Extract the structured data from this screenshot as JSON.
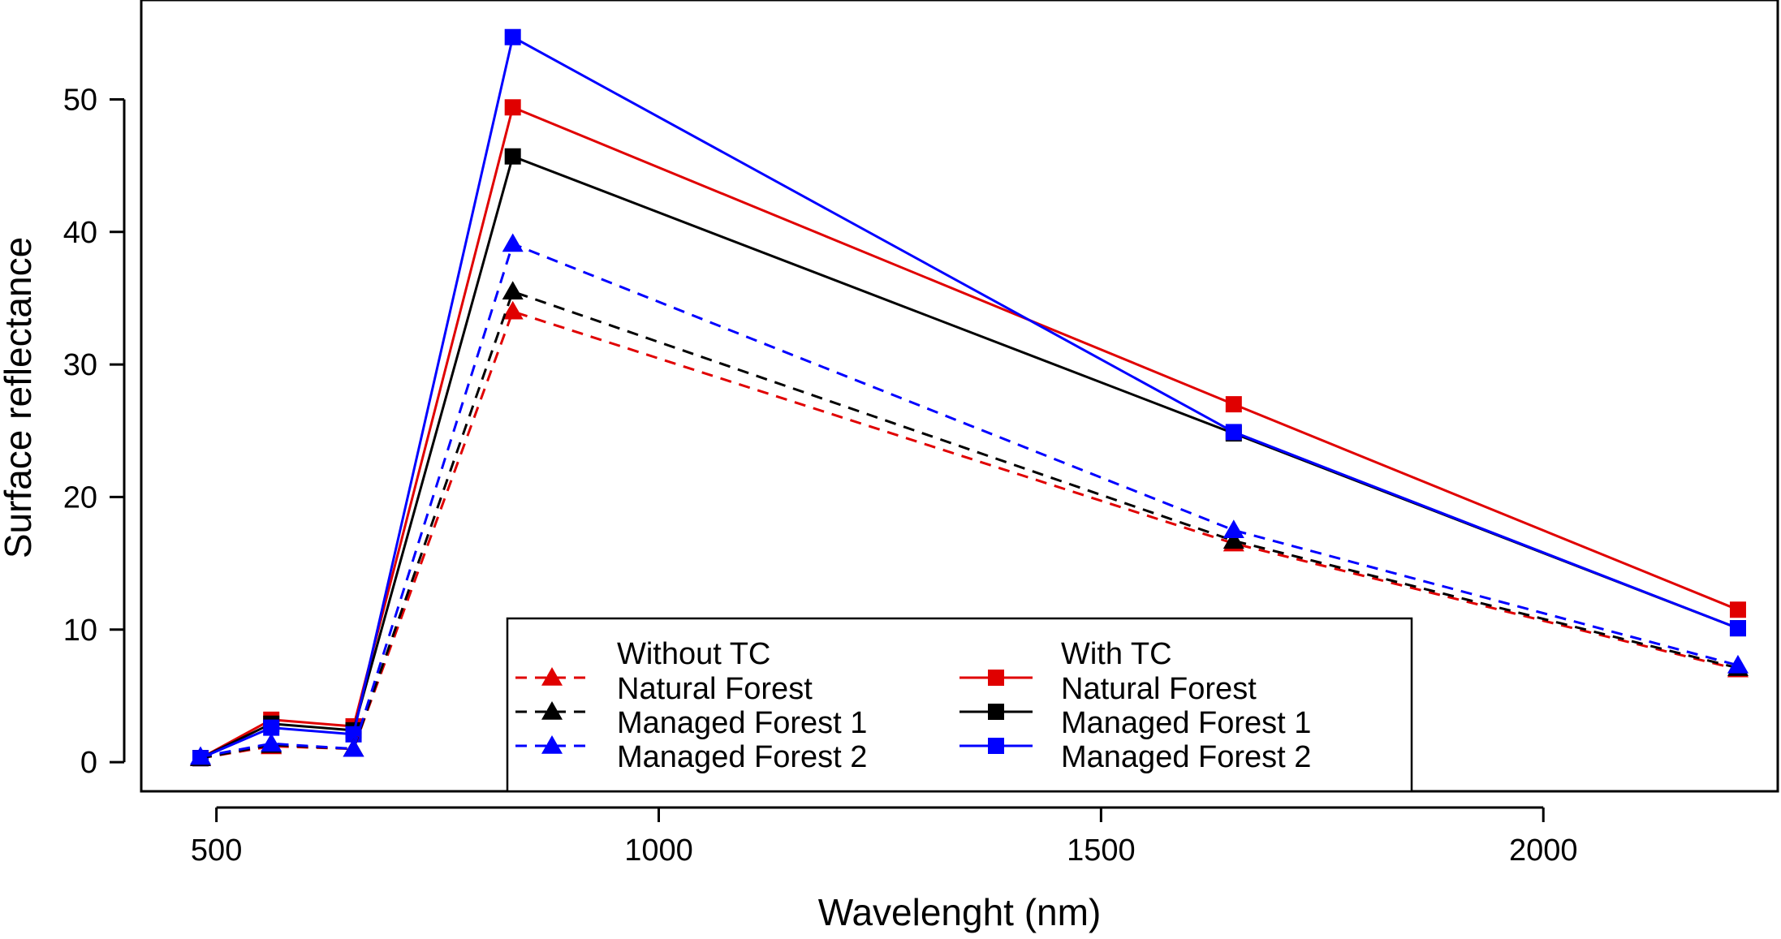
{
  "chart_data": {
    "type": "line",
    "title": "",
    "xlabel": "Wavelenght (nm)",
    "ylabel": "Surface reflectance",
    "xlim": [
      415,
      2265
    ],
    "ylim": [
      -2.2,
      57.5
    ],
    "xticks": [
      500,
      1000,
      1500,
      2000
    ],
    "yticks": [
      0,
      10,
      20,
      30,
      40,
      50
    ],
    "grid": false,
    "legend_position": "bottom-center",
    "x": [
      482,
      562,
      655,
      835,
      1650,
      2220
    ],
    "legend": {
      "group_without": "Without TC",
      "group_with": "With TC"
    },
    "series": [
      {
        "name": "Natural Forest",
        "group": "Without TC",
        "color": "#e00000",
        "style": "dashed",
        "marker": "triangle",
        "values": [
          0.3,
          1.2,
          1.0,
          34.0,
          16.5,
          7.0
        ]
      },
      {
        "name": "Managed Forest 1",
        "group": "Without TC",
        "color": "#000000",
        "style": "dashed",
        "marker": "triangle",
        "values": [
          0.3,
          1.3,
          1.0,
          35.5,
          16.7,
          7.1
        ]
      },
      {
        "name": "Managed Forest 2",
        "group": "Without TC",
        "color": "#0000ff",
        "style": "dashed",
        "marker": "triangle",
        "values": [
          0.4,
          1.4,
          1.0,
          39.1,
          17.5,
          7.3
        ]
      },
      {
        "name": "Natural Forest",
        "group": "With TC",
        "color": "#e00000",
        "style": "solid",
        "marker": "square",
        "values": [
          0.3,
          3.2,
          2.7,
          49.4,
          27.0,
          11.5
        ]
      },
      {
        "name": "Managed Forest 1",
        "group": "With TC",
        "color": "#000000",
        "style": "solid",
        "marker": "square",
        "values": [
          0.3,
          2.9,
          2.4,
          45.7,
          24.8,
          10.1
        ]
      },
      {
        "name": "Managed Forest 2",
        "group": "With TC",
        "color": "#0000ff",
        "style": "solid",
        "marker": "square",
        "values": [
          0.3,
          2.6,
          2.1,
          54.7,
          24.9,
          10.1
        ]
      }
    ]
  }
}
